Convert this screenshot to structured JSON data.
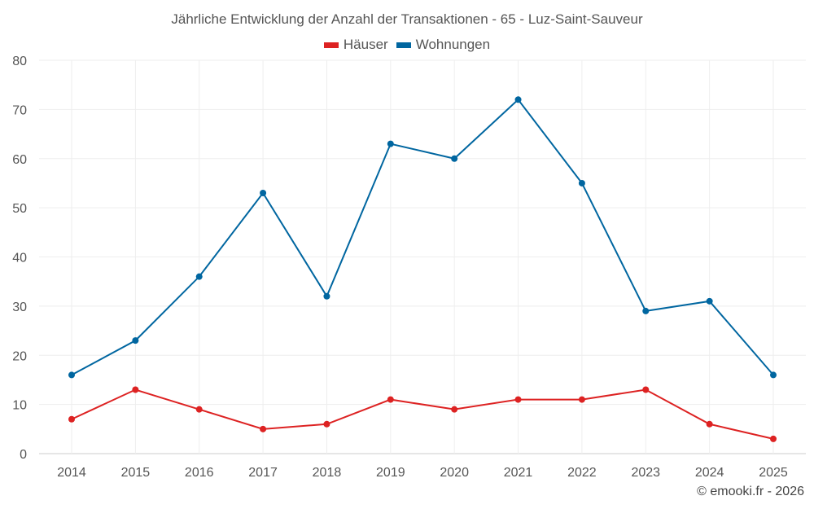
{
  "chart_data": {
    "type": "line",
    "title": "Jährliche Entwicklung der Anzahl der Transaktionen - 65 - Luz-Saint-Sauveur",
    "x": [
      "2014",
      "2015",
      "2016",
      "2017",
      "2018",
      "2019",
      "2020",
      "2021",
      "2022",
      "2023",
      "2024",
      "2025"
    ],
    "series": [
      {
        "name": "Häuser",
        "color": "#dd2222",
        "values": [
          7,
          13,
          9,
          5,
          6,
          11,
          9,
          11,
          11,
          13,
          6,
          3
        ]
      },
      {
        "name": "Wohnungen",
        "color": "#0066a0",
        "values": [
          16,
          23,
          36,
          53,
          32,
          63,
          60,
          72,
          55,
          29,
          31,
          16
        ]
      }
    ],
    "ylim": [
      0,
      80
    ],
    "yticks": [
      0,
      10,
      20,
      30,
      40,
      50,
      60,
      70,
      80
    ],
    "grid": true,
    "legend": "top-center"
  },
  "credit": "© emooki.fr - 2026"
}
